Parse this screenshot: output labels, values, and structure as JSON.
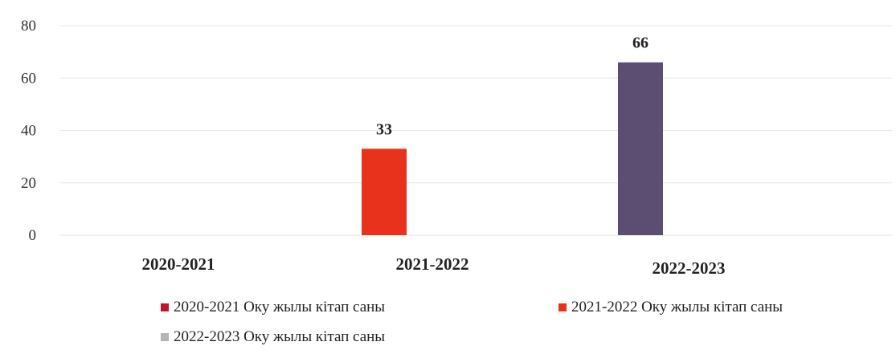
{
  "chart_data": {
    "type": "bar",
    "categories": [
      "2020-2021",
      "2021-2022",
      "2022-2023"
    ],
    "series": [
      {
        "name": "2020-2021 Оку жылы кітап саны",
        "values": [
          0,
          null,
          null
        ],
        "color": "#c0152a"
      },
      {
        "name": "2021-2022 Оку жылы кітап саны",
        "values": [
          null,
          33,
          null
        ],
        "color": "#e8321c"
      },
      {
        "name": "2022-2023 Оку жылы кітап саны",
        "values": [
          null,
          null,
          66
        ],
        "color": "#5b4e72"
      }
    ],
    "data_labels": [
      "",
      "33",
      "66"
    ],
    "y_ticks": [
      "0",
      "20",
      "40",
      "60",
      "80"
    ],
    "ylim": [
      0,
      80
    ],
    "grid": true,
    "legend_position": "bottom",
    "legend_swatch_colors": [
      "#c0152a",
      "#e8321c",
      "#b5b5b5"
    ]
  }
}
